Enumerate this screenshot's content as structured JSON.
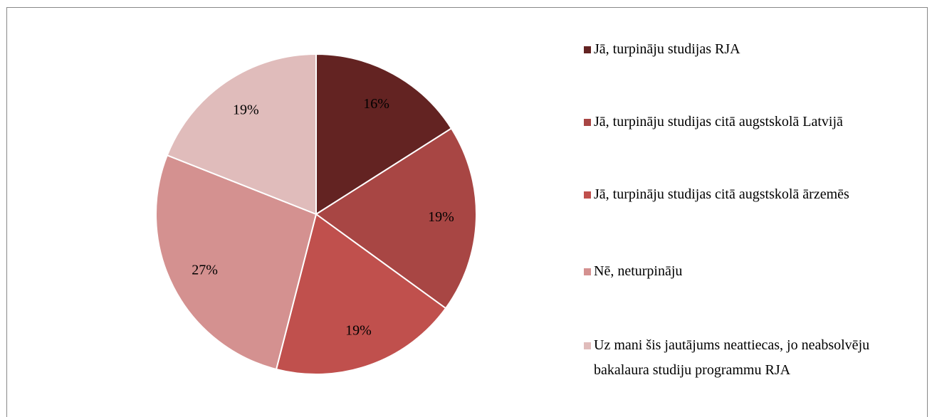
{
  "chart_data": {
    "type": "pie",
    "categories": [
      "Jā, turpināju studijas RJA",
      "Jā, turpināju studijas citā augstskolā Latvijā",
      "Jā, turpināju studijas citā augstskolā ārzemēs",
      "Nē, neturpināju",
      "Uz mani šis jautājums neattiecas, jo neabsolvēju bakalaura studiju programmu RJA"
    ],
    "values": [
      16,
      19,
      19,
      27,
      19
    ],
    "value_labels": [
      "16%",
      "19%",
      "19%",
      "27%",
      "19%"
    ],
    "colors": [
      "#632322",
      "#a84644",
      "#c0504d",
      "#d49190",
      "#e0bcbb"
    ],
    "legend": "right"
  }
}
